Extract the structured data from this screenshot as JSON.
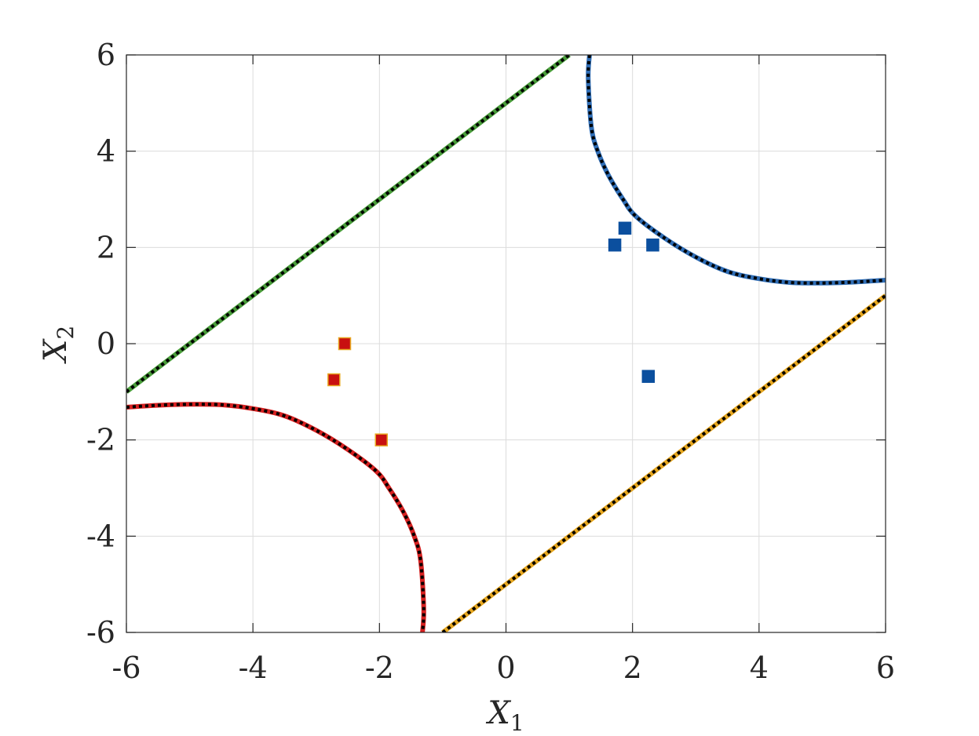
{
  "chart_data": {
    "type": "line",
    "xlabel": "X",
    "xlabel_sub": "1",
    "ylabel": "X",
    "ylabel_sub": "2",
    "xlim": [
      -6,
      6
    ],
    "ylim": [
      -6,
      6
    ],
    "xticks": [
      -6,
      -4,
      -2,
      0,
      2,
      4,
      6
    ],
    "yticks": [
      -6,
      -4,
      -2,
      0,
      2,
      4,
      6
    ],
    "grid": true,
    "series": [
      {
        "color": "#4a9e3b",
        "style": "line",
        "points": [
          [
            -6.0,
            -1.0
          ],
          [
            1.0,
            6.0
          ]
        ]
      },
      {
        "color": "#e8a820",
        "style": "line",
        "points": [
          [
            -1.0,
            -6.0
          ],
          [
            6.0,
            1.0
          ]
        ]
      },
      {
        "color": "#2f6db5",
        "style": "curve",
        "points": [
          [
            1.32,
            6.0
          ],
          [
            1.3,
            5.5
          ],
          [
            1.35,
            4.5
          ],
          [
            1.45,
            4.0
          ],
          [
            1.62,
            3.5
          ],
          [
            1.85,
            3.0
          ],
          [
            2.05,
            2.65
          ],
          [
            2.5,
            2.2
          ],
          [
            3.0,
            1.8
          ],
          [
            3.5,
            1.5
          ],
          [
            4.0,
            1.35
          ],
          [
            4.5,
            1.27
          ],
          [
            5.0,
            1.26
          ],
          [
            5.5,
            1.28
          ],
          [
            6.0,
            1.32
          ]
        ]
      },
      {
        "color": "#d62020",
        "style": "curve",
        "points": [
          [
            -6.0,
            -1.32
          ],
          [
            -5.5,
            -1.28
          ],
          [
            -5.0,
            -1.26
          ],
          [
            -4.5,
            -1.27
          ],
          [
            -4.0,
            -1.35
          ],
          [
            -3.5,
            -1.5
          ],
          [
            -3.0,
            -1.8
          ],
          [
            -2.5,
            -2.2
          ],
          [
            -2.05,
            -2.65
          ],
          [
            -1.85,
            -3.0
          ],
          [
            -1.62,
            -3.5
          ],
          [
            -1.45,
            -4.0
          ],
          [
            -1.35,
            -4.5
          ],
          [
            -1.3,
            -5.5
          ],
          [
            -1.32,
            -6.0
          ]
        ]
      }
    ],
    "markers": [
      {
        "color": "#0b4f9e",
        "edge": "#0b4f9e",
        "points": [
          [
            1.72,
            2.05
          ],
          [
            1.88,
            2.4
          ],
          [
            2.32,
            2.05
          ],
          [
            2.25,
            -0.68
          ]
        ]
      },
      {
        "color": "#c81010",
        "edge": "#e8a820",
        "points": [
          [
            -2.55,
            0.0
          ],
          [
            -2.72,
            -0.75
          ],
          [
            -1.97,
            -2.0
          ]
        ]
      }
    ]
  }
}
